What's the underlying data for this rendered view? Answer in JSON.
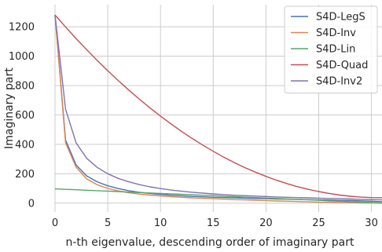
{
  "chart_data": {
    "type": "line",
    "title": "",
    "xlabel": "n-th eigenvalue, descending order of imaginary part",
    "ylabel": "Imaginary part",
    "xlim": [
      0,
      31
    ],
    "ylim": [
      -60,
      1350
    ],
    "xticks": [
      0,
      5,
      10,
      15,
      20,
      25,
      30
    ],
    "yticks": [
      0,
      200,
      400,
      600,
      800,
      1000,
      1200
    ],
    "grid": true,
    "legend_position": "top-right",
    "x": [
      0,
      1,
      2,
      3,
      4,
      5,
      6,
      7,
      8,
      9,
      10,
      11,
      12,
      13,
      14,
      15,
      16,
      17,
      18,
      19,
      20,
      21,
      22,
      23,
      24,
      25,
      26,
      27,
      28,
      29,
      30,
      31
    ],
    "series": [
      {
        "name": "S4D-LegS",
        "color": "#4c72b0",
        "values": [
          1280,
          430,
          260,
          185,
          145,
          118,
          99,
          85,
          74,
          66,
          59,
          54,
          50,
          46,
          43,
          40,
          38,
          36,
          34,
          32,
          30,
          28,
          27,
          25,
          24,
          22,
          21,
          19,
          18,
          16,
          13,
          10
        ]
      },
      {
        "name": "S4D-Inv",
        "color": "#dd8452",
        "values": [
          1280,
          410,
          245,
          165,
          125,
          100,
          83,
          71,
          62,
          55,
          49,
          44,
          40,
          36,
          33,
          30,
          27,
          24,
          22,
          20,
          17,
          15,
          13,
          11,
          9,
          7,
          6,
          4,
          3,
          2,
          1,
          0
        ]
      },
      {
        "name": "S4D-Lin",
        "color": "#55a868",
        "values": [
          97,
          94,
          91,
          88,
          85,
          82,
          79,
          75,
          72,
          69,
          66,
          63,
          60,
          57,
          54,
          51,
          47,
          44,
          41,
          38,
          35,
          32,
          29,
          26,
          23,
          20,
          16,
          13,
          10,
          7,
          4,
          1
        ]
      },
      {
        "name": "S4D-Quad",
        "color": "#c44e52",
        "values": [
          1280,
          1199,
          1120,
          1044,
          971,
          901,
          834,
          769,
          707,
          648,
          592,
          539,
          488,
          440,
          395,
          353,
          313,
          276,
          242,
          211,
          182,
          156,
          133,
          112,
          94,
          79,
          66,
          55,
          47,
          41,
          38,
          37
        ]
      },
      {
        "name": "S4D-Inv2",
        "color": "#8172b3",
        "values": [
          1280,
          640,
          410,
          305,
          243,
          200,
          168,
          145,
          126,
          111,
          99,
          89,
          81,
          74,
          68,
          63,
          58,
          54,
          51,
          48,
          45,
          42,
          40,
          38,
          36,
          34,
          32,
          30,
          28,
          26,
          24,
          22
        ]
      }
    ]
  }
}
